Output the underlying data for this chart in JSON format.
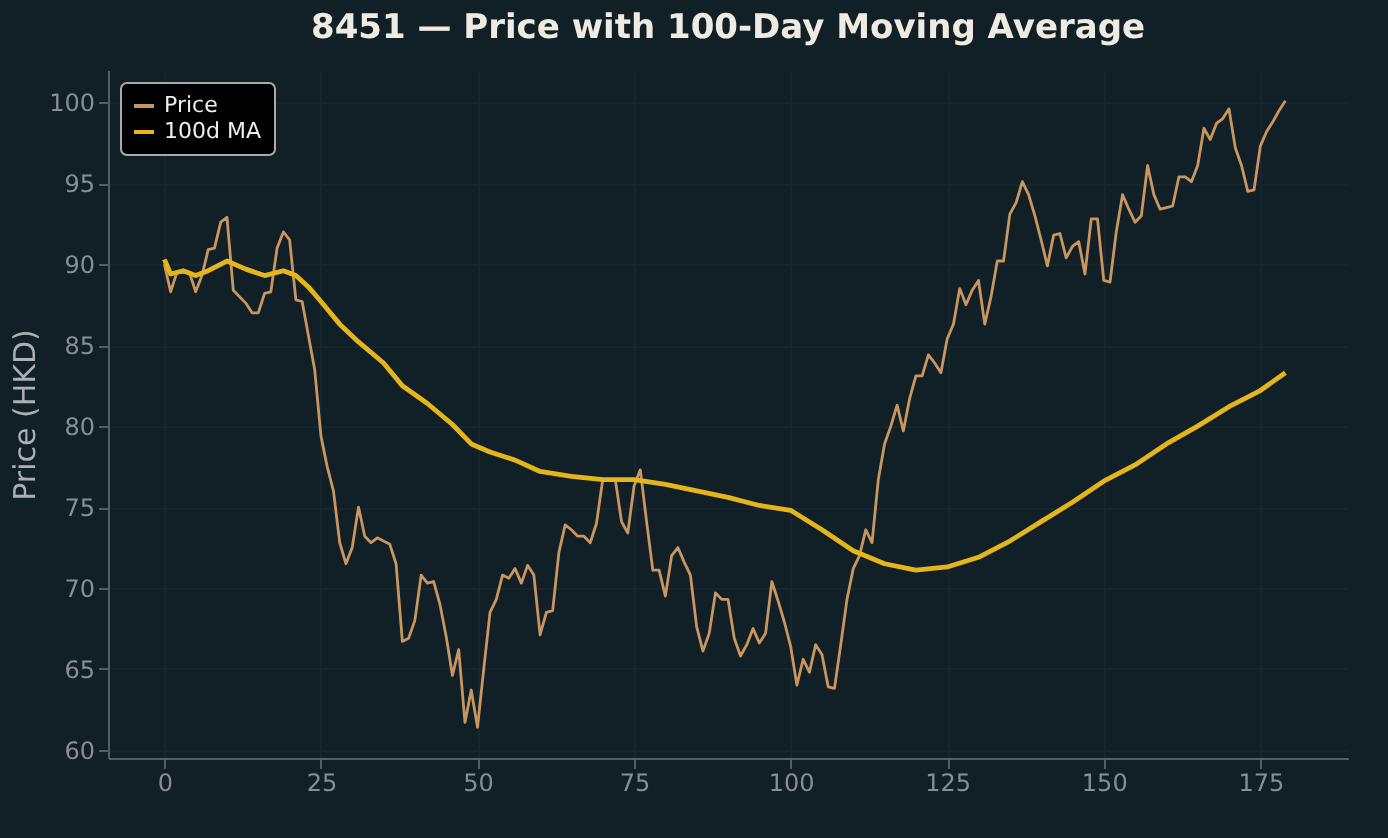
{
  "chart_data": {
    "type": "line",
    "title": "8451 — Price with 100-Day Moving Average",
    "ylabel": "Price (HKD)",
    "xlim": [
      -9,
      189
    ],
    "xticks": [
      0,
      25,
      50,
      75,
      100,
      125,
      150,
      175
    ],
    "ylim": [
      59.5,
      102
    ],
    "yticks": [
      60,
      65,
      70,
      75,
      80,
      85,
      90,
      95,
      100
    ],
    "grid": true,
    "legend": "top left",
    "line_style": "solid",
    "series": [
      {
        "name": "Price",
        "color": "#c9965f",
        "x": [
          0,
          1,
          2,
          4,
          5,
          6,
          7,
          8,
          9,
          10,
          11,
          13,
          14,
          15,
          16,
          17,
          18,
          19,
          20,
          21,
          22,
          24,
          25,
          26,
          27,
          28,
          29,
          30,
          31,
          32,
          33,
          34,
          35,
          36,
          37,
          38,
          39,
          40,
          41,
          42,
          43,
          44,
          45,
          46,
          47,
          48,
          49,
          50,
          51,
          52,
          53,
          54,
          55,
          56,
          57,
          58,
          59,
          60,
          61,
          62,
          63,
          64,
          65,
          66,
          67,
          68,
          69,
          70,
          71,
          72,
          73,
          74,
          75,
          76,
          77,
          78,
          79,
          80,
          81,
          82,
          83,
          84,
          85,
          86,
          87,
          88,
          89,
          90,
          91,
          92,
          93,
          94,
          95,
          96,
          97,
          98,
          99,
          100,
          101,
          102,
          103,
          104,
          105,
          106,
          107,
          108,
          109,
          110,
          111,
          112,
          113,
          114,
          115,
          116,
          117,
          118,
          119,
          120,
          121,
          122,
          123,
          124,
          125,
          126,
          127,
          128,
          129,
          130,
          131,
          132,
          133,
          134,
          135,
          136,
          137,
          138,
          139,
          140,
          141,
          142,
          143,
          144,
          145,
          146,
          147,
          148,
          149,
          150,
          151,
          152,
          153,
          154,
          155,
          156,
          157,
          158,
          159,
          160,
          161,
          162,
          163,
          164,
          165,
          166,
          167,
          168,
          169,
          170,
          171,
          172,
          173,
          174,
          175,
          176,
          177,
          178,
          179
        ],
        "values": [
          90.0,
          88.3,
          89.5,
          89.5,
          88.3,
          89.3,
          90.9,
          91.0,
          92.6,
          92.9,
          88.4,
          87.6,
          87.0,
          87.0,
          88.2,
          88.3,
          91.0,
          92.0,
          91.5,
          87.8,
          87.7,
          83.5,
          79.4,
          77.5,
          76.0,
          72.8,
          71.5,
          72.5,
          75.0,
          73.2,
          72.8,
          73.1,
          72.9,
          72.7,
          71.5,
          66.7,
          66.9,
          68.0,
          70.8,
          70.3,
          70.4,
          69.0,
          67.0,
          64.6,
          66.2,
          61.7,
          63.7,
          61.4,
          65.0,
          68.5,
          69.3,
          70.8,
          70.6,
          71.2,
          70.3,
          71.4,
          70.8,
          67.1,
          68.5,
          68.6,
          72.2,
          73.9,
          73.6,
          73.2,
          73.2,
          72.8,
          74.0,
          76.7,
          76.7,
          76.7,
          74.1,
          73.4,
          76.3,
          77.3,
          74.1,
          71.1,
          71.1,
          69.5,
          72.0,
          72.5,
          71.6,
          70.8,
          67.6,
          66.1,
          67.2,
          69.7,
          69.3,
          69.3,
          66.9,
          65.8,
          66.5,
          67.5,
          66.6,
          67.2,
          70.4,
          69.2,
          67.9,
          66.4,
          64.0,
          65.6,
          64.8,
          66.5,
          65.9,
          63.9,
          63.8,
          66.5,
          69.3,
          71.2,
          72.0,
          73.6,
          72.8,
          76.7,
          78.9,
          80.0,
          81.3,
          79.7,
          81.7,
          83.1,
          83.1,
          84.4,
          83.9,
          83.3,
          85.4,
          86.3,
          88.5,
          87.5,
          88.4,
          89.0,
          86.3,
          88.0,
          90.2,
          90.2,
          93.1,
          93.8,
          95.1,
          94.3,
          93.0,
          91.5,
          89.9,
          91.8,
          91.9,
          90.4,
          91.1,
          91.4,
          89.4,
          92.8,
          92.8,
          89.0,
          88.9,
          92.0,
          94.3,
          93.4,
          92.6,
          93.0,
          96.1,
          94.3,
          93.4,
          93.5,
          93.6,
          95.4,
          95.4,
          95.1,
          96.1,
          98.4,
          97.7,
          98.7,
          99.0,
          99.6,
          97.2,
          96.1,
          94.5,
          94.6,
          97.3,
          98.2,
          98.8,
          99.5,
          100.1
        ]
      },
      {
        "name": "100d MA",
        "color": "#e5b61b",
        "x": [
          0,
          1,
          3,
          5,
          7,
          10,
          13,
          16,
          19,
          21,
          23,
          25,
          28,
          31,
          35,
          38,
          42,
          46,
          49,
          52,
          56,
          60,
          65,
          70,
          75,
          80,
          85,
          90,
          95,
          100,
          105,
          110,
          115,
          120,
          125,
          130,
          135,
          140,
          145,
          150,
          155,
          160,
          165,
          170,
          175,
          179
        ],
        "values": [
          90.3,
          89.4,
          89.6,
          89.3,
          89.6,
          90.2,
          89.7,
          89.3,
          89.6,
          89.3,
          88.6,
          87.7,
          86.3,
          85.2,
          83.9,
          82.5,
          81.4,
          80.1,
          78.9,
          78.4,
          77.9,
          77.2,
          76.9,
          76.7,
          76.7,
          76.4,
          76.0,
          75.6,
          75.1,
          74.8,
          73.6,
          72.3,
          71.5,
          71.1,
          71.3,
          71.9,
          72.9,
          74.1,
          75.3,
          76.6,
          77.6,
          78.9,
          80.0,
          81.2,
          82.2,
          83.3
        ]
      }
    ]
  }
}
